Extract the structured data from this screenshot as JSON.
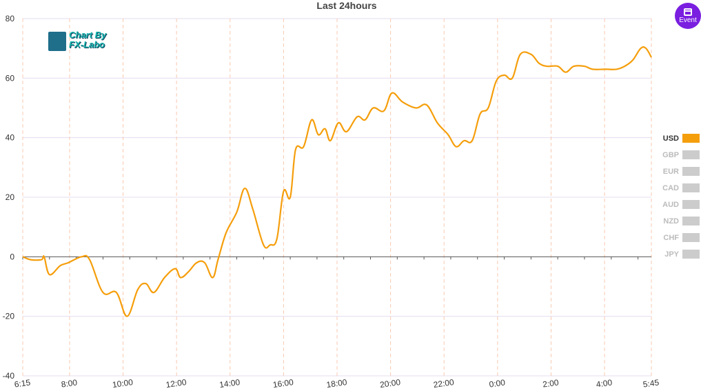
{
  "logo": {
    "line1": "Chart By",
    "line2": "FX-Labo"
  },
  "event_button": {
    "label": "Event",
    "color": "#7a1ee0"
  },
  "chart_data": {
    "type": "line",
    "title": "Last 24hours",
    "xlabel": "",
    "ylabel": "",
    "ylim": [
      -40,
      80
    ],
    "yticks": [
      80,
      60,
      40,
      20,
      0,
      -20,
      -40
    ],
    "xlim": [
      0,
      23.5
    ],
    "xticks": [
      {
        "label": "6:15",
        "x": 0
      },
      {
        "label": "8:00",
        "x": 1.75
      },
      {
        "label": "10:00",
        "x": 3.75
      },
      {
        "label": "12:00",
        "x": 5.75
      },
      {
        "label": "14:00",
        "x": 7.75
      },
      {
        "label": "16:00",
        "x": 9.75
      },
      {
        "label": "18:00",
        "x": 11.75
      },
      {
        "label": "20:00",
        "x": 13.75
      },
      {
        "label": "22:00",
        "x": 15.75
      },
      {
        "label": "0:00",
        "x": 17.75
      },
      {
        "label": "2:00",
        "x": 19.75
      },
      {
        "label": "4:00",
        "x": 21.75
      },
      {
        "label": "5:45",
        "x": 23.5
      }
    ],
    "grid": true,
    "legend_position": "right",
    "legend": [
      {
        "name": "USD",
        "color": "#f59e0b",
        "active": true
      },
      {
        "name": "GBP",
        "color": "#cccccc",
        "active": false
      },
      {
        "name": "EUR",
        "color": "#cccccc",
        "active": false
      },
      {
        "name": "CAD",
        "color": "#cccccc",
        "active": false
      },
      {
        "name": "AUD",
        "color": "#cccccc",
        "active": false
      },
      {
        "name": "NZD",
        "color": "#cccccc",
        "active": false
      },
      {
        "name": "CHF",
        "color": "#cccccc",
        "active": false
      },
      {
        "name": "JPY",
        "color": "#cccccc",
        "active": false
      }
    ],
    "series": [
      {
        "name": "USD",
        "color": "#f59e0b",
        "x": [
          0,
          0.3,
          0.7,
          0.8,
          1.0,
          1.4,
          1.7,
          2.2,
          2.5,
          3.0,
          3.5,
          3.9,
          4.3,
          4.6,
          4.9,
          5.3,
          5.7,
          5.9,
          6.2,
          6.5,
          6.8,
          7.1,
          7.3,
          7.6,
          8.0,
          8.3,
          8.6,
          9.0,
          9.25,
          9.5,
          9.75,
          10.0,
          10.2,
          10.5,
          10.8,
          11.05,
          11.3,
          11.5,
          11.8,
          12.1,
          12.5,
          12.8,
          13.1,
          13.5,
          13.8,
          14.2,
          14.7,
          15.1,
          15.5,
          15.9,
          16.2,
          16.5,
          16.8,
          17.1,
          17.4,
          17.7,
          18.0,
          18.3,
          18.6,
          19.0,
          19.3,
          19.6,
          20.0,
          20.3,
          20.6,
          21.0,
          21.3,
          21.8,
          22.2,
          22.5,
          22.8,
          23.1,
          23.3,
          23.5
        ],
        "values": [
          0,
          -1,
          -1,
          0,
          -6,
          -3,
          -2,
          0,
          -1,
          -12,
          -12,
          -20,
          -11,
          -9,
          -12,
          -7,
          -4,
          -7,
          -5,
          -2,
          -2,
          -7,
          -1,
          8,
          15,
          23,
          16,
          4,
          4,
          6,
          22,
          20,
          36,
          37,
          46,
          41,
          43,
          39,
          45,
          42,
          47,
          46,
          50,
          49,
          55,
          52,
          50,
          51,
          45,
          41,
          37,
          39,
          39,
          48,
          50,
          59,
          61,
          60,
          68,
          68,
          65,
          64,
          64,
          62,
          64,
          64,
          63,
          63,
          63,
          64,
          66,
          70,
          70,
          67
        ]
      }
    ]
  }
}
